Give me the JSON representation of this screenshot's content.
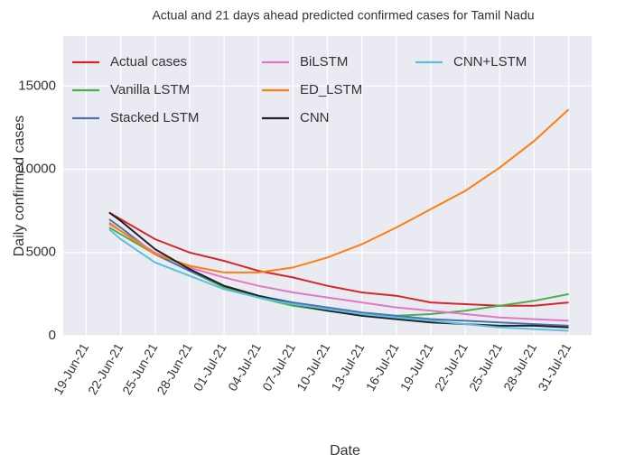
{
  "chart_data": {
    "type": "line",
    "title": "Actual and 21 days ahead predicted confirmed cases for Tamil Nadu",
    "x_label": "Date",
    "y_label": "Daily confirmed cases",
    "x": [
      "2021-06-21",
      "2021-06-22",
      "2021-06-25",
      "2021-06-28",
      "2021-07-01",
      "2021-07-04",
      "2021-07-07",
      "2021-07-10",
      "2021-07-13",
      "2021-07-16",
      "2021-07-19",
      "2021-07-22",
      "2021-07-25",
      "2021-07-28",
      "2021-07-31"
    ],
    "series": [
      {
        "name": "Actual cases",
        "color": "#d62728",
        "values": [
          7400,
          7000,
          5800,
          5000,
          4500,
          3900,
          3500,
          3000,
          2600,
          2400,
          2000,
          1900,
          1800,
          1800,
          2000
        ]
      },
      {
        "name": "Vanilla LSTM",
        "color": "#4daf4a",
        "values": [
          6500,
          6100,
          4900,
          3900,
          2900,
          2300,
          1800,
          1500,
          1300,
          1200,
          1300,
          1500,
          1800,
          2100,
          2500
        ]
      },
      {
        "name": "Stacked LSTM",
        "color": "#4c72b0",
        "values": [
          7000,
          6500,
          4900,
          3900,
          3000,
          2400,
          2000,
          1700,
          1400,
          1200,
          1000,
          900,
          800,
          700,
          600
        ]
      },
      {
        "name": "BiLSTM",
        "color": "#e377c2",
        "values": [
          6700,
          6300,
          5000,
          4100,
          3500,
          3000,
          2600,
          2300,
          2000,
          1700,
          1500,
          1300,
          1100,
          1000,
          900
        ]
      },
      {
        "name": "ED_LSTM",
        "color": "#ff7f0e",
        "values": [
          6800,
          6300,
          4900,
          4200,
          3800,
          3800,
          4100,
          4700,
          5500,
          6500,
          7600,
          8700,
          10100,
          11700,
          13600
        ]
      },
      {
        "name": "CNN",
        "color": "#222222",
        "values": [
          7400,
          6900,
          5200,
          4000,
          3000,
          2400,
          1900,
          1500,
          1200,
          1000,
          800,
          700,
          600,
          600,
          500
        ]
      },
      {
        "name": "CNN+LSTM",
        "color": "#5bc0de",
        "values": [
          6400,
          5800,
          4400,
          3600,
          2800,
          2300,
          1900,
          1600,
          1300,
          1100,
          900,
          700,
          500,
          400,
          300
        ]
      }
    ],
    "xlim": [
      "2021-06-17",
      "2021-08-02"
    ],
    "xticks": [
      {
        "value": "2021-06-19",
        "label": "19-Jun-21"
      },
      {
        "value": "2021-06-22",
        "label": "22-Jun-21"
      },
      {
        "value": "2021-06-25",
        "label": "25-Jun-21"
      },
      {
        "value": "2021-06-28",
        "label": "28-Jun-21"
      },
      {
        "value": "2021-07-01",
        "label": "01-Jul-21"
      },
      {
        "value": "2021-07-04",
        "label": "04-Jul-21"
      },
      {
        "value": "2021-07-07",
        "label": "07-Jul-21"
      },
      {
        "value": "2021-07-10",
        "label": "10-Jul-21"
      },
      {
        "value": "2021-07-13",
        "label": "13-Jul-21"
      },
      {
        "value": "2021-07-16",
        "label": "16-Jul-21"
      },
      {
        "value": "2021-07-19",
        "label": "19-Jul-21"
      },
      {
        "value": "2021-07-22",
        "label": "22-Jul-21"
      },
      {
        "value": "2021-07-25",
        "label": "25-Jul-21"
      },
      {
        "value": "2021-07-28",
        "label": "28-Jul-21"
      },
      {
        "value": "2021-07-31",
        "label": "31-Jul-21"
      }
    ],
    "ylim": [
      0,
      18000
    ],
    "yticks": [
      0,
      5000,
      10000,
      15000
    ],
    "grid": true,
    "legend": "upper left",
    "legend_columns": 3
  }
}
